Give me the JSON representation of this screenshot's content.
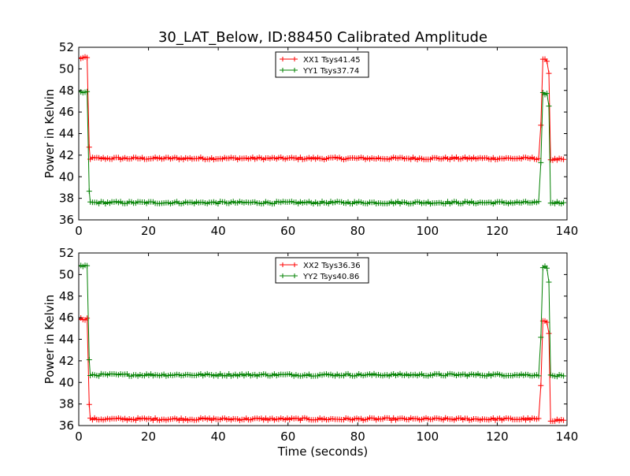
{
  "figure_title": "30_LAT_Below, ID:88450 Calibrated Amplitude",
  "colors": {
    "red": "#ff0000",
    "green": "#008000",
    "axis": "#000000",
    "background": "#ffffff"
  },
  "chart_data": [
    {
      "type": "line",
      "title": "30_LAT_Below, ID:88450 Calibrated Amplitude",
      "xlabel": "",
      "ylabel": "Power in Kelvin",
      "xlim": [
        0,
        140
      ],
      "ylim": [
        36,
        52
      ],
      "xticks": [
        0,
        20,
        40,
        60,
        80,
        100,
        120,
        140
      ],
      "yticks": [
        36,
        38,
        40,
        42,
        44,
        46,
        48,
        50,
        52
      ],
      "grid": false,
      "legend_position": "top-center",
      "series": [
        {
          "name": "XX1 Tsys41.45",
          "color": "#ff0000",
          "marker": "+",
          "segments": [
            {
              "x_start": 0,
              "x_end": 3,
              "value": 51.0
            },
            {
              "x_start": 3,
              "x_end": 3.3,
              "value": 42.7
            },
            {
              "x_start": 3.3,
              "x_end": 132.5,
              "value": 41.7
            },
            {
              "x_start": 132.5,
              "x_end": 133.1,
              "value": 44.8
            },
            {
              "x_start": 133.1,
              "x_end": 134.8,
              "value": 50.8
            },
            {
              "x_start": 134.8,
              "x_end": 135.3,
              "value": 49.6
            },
            {
              "x_start": 135.3,
              "x_end": 139,
              "value": 41.6
            }
          ]
        },
        {
          "name": "YY1 Tsys37.74",
          "color": "#008000",
          "marker": "+",
          "segments": [
            {
              "x_start": 0,
              "x_end": 3,
              "value": 47.8
            },
            {
              "x_start": 3,
              "x_end": 3.3,
              "value": 38.7
            },
            {
              "x_start": 3.3,
              "x_end": 132.5,
              "value": 37.6
            },
            {
              "x_start": 132.5,
              "x_end": 133.1,
              "value": 41.2
            },
            {
              "x_start": 133.1,
              "x_end": 134.8,
              "value": 47.7
            },
            {
              "x_start": 134.8,
              "x_end": 135.3,
              "value": 46.5
            },
            {
              "x_start": 135.3,
              "x_end": 139,
              "value": 37.6
            }
          ]
        }
      ]
    },
    {
      "type": "line",
      "title": "",
      "xlabel": "Time (seconds)",
      "ylabel": "Power in Kelvin",
      "xlim": [
        0,
        140
      ],
      "ylim": [
        36,
        52
      ],
      "xticks": [
        0,
        20,
        40,
        60,
        80,
        100,
        120,
        140
      ],
      "yticks": [
        36,
        38,
        40,
        42,
        44,
        46,
        48,
        50,
        52
      ],
      "grid": false,
      "legend_position": "top-center",
      "series": [
        {
          "name": "XX2 Tsys36.36",
          "color": "#ff0000",
          "marker": "+",
          "segments": [
            {
              "x_start": 0,
              "x_end": 3,
              "value": 45.9
            },
            {
              "x_start": 3,
              "x_end": 3.3,
              "value": 38.0
            },
            {
              "x_start": 3.3,
              "x_end": 132.5,
              "value": 36.6
            },
            {
              "x_start": 132.5,
              "x_end": 133.1,
              "value": 39.7
            },
            {
              "x_start": 133.1,
              "x_end": 134.8,
              "value": 45.6
            },
            {
              "x_start": 134.8,
              "x_end": 135.3,
              "value": 44.6
            },
            {
              "x_start": 135.3,
              "x_end": 139,
              "value": 36.5
            }
          ]
        },
        {
          "name": "YY2 Tsys40.86",
          "color": "#008000",
          "marker": "+",
          "segments": [
            {
              "x_start": 0,
              "x_end": 3,
              "value": 50.8
            },
            {
              "x_start": 3,
              "x_end": 3.3,
              "value": 42.0
            },
            {
              "x_start": 3.3,
              "x_end": 132.5,
              "value": 40.7
            },
            {
              "x_start": 132.5,
              "x_end": 133.1,
              "value": 44.1
            },
            {
              "x_start": 133.1,
              "x_end": 134.8,
              "value": 50.7
            },
            {
              "x_start": 134.8,
              "x_end": 135.3,
              "value": 49.4
            },
            {
              "x_start": 135.3,
              "x_end": 139,
              "value": 40.6
            }
          ]
        }
      ]
    }
  ]
}
